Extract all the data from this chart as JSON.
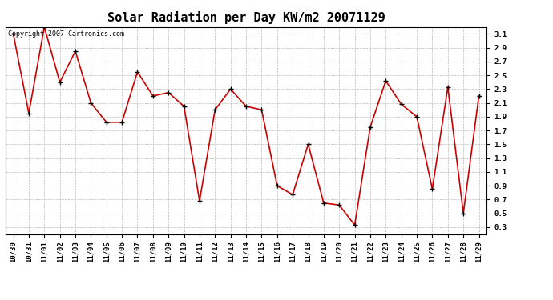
{
  "title": "Solar Radiation per Day KW/m2 20071129",
  "copyright_text": "Copyright 2007 Cartronics.com",
  "labels": [
    "10/30",
    "10/31",
    "11/01",
    "11/02",
    "11/03",
    "11/04",
    "11/05",
    "11/06",
    "11/07",
    "11/08",
    "11/09",
    "11/10",
    "11/11",
    "11/12",
    "11/13",
    "11/14",
    "11/15",
    "11/16",
    "11/17",
    "11/18",
    "11/19",
    "11/20",
    "11/21",
    "11/22",
    "11/23",
    "11/24",
    "11/25",
    "11/26",
    "11/27",
    "11/28",
    "11/29"
  ],
  "values": [
    3.1,
    1.95,
    3.2,
    2.4,
    2.85,
    2.1,
    1.82,
    1.82,
    2.55,
    2.2,
    2.25,
    2.05,
    0.68,
    2.0,
    2.3,
    2.05,
    2.0,
    0.9,
    0.77,
    1.5,
    0.65,
    0.62,
    0.33,
    1.75,
    2.42,
    2.08,
    1.9,
    0.85,
    2.33,
    0.5,
    2.2
  ],
  "line_color": "#cc0000",
  "marker_color": "#000000",
  "bg_color": "#ffffff",
  "plot_bg_color": "#ffffff",
  "grid_color": "#bbbbbb",
  "ylim": [
    0.2,
    3.2
  ],
  "yticks": [
    0.3,
    0.5,
    0.7,
    0.9,
    1.1,
    1.3,
    1.5,
    1.7,
    1.9,
    2.1,
    2.3,
    2.5,
    2.7,
    2.9,
    3.1
  ],
  "ytick_labels": [
    "0.3",
    "0.5",
    "0.7",
    "0.9",
    "1.1",
    "1.3",
    "1.5",
    "1.7",
    "1.9",
    "2.1",
    "2.3",
    "2.5",
    "2.7",
    "2.9",
    "3.1"
  ],
  "title_fontsize": 11,
  "tick_fontsize": 6.5,
  "copyright_fontsize": 6
}
